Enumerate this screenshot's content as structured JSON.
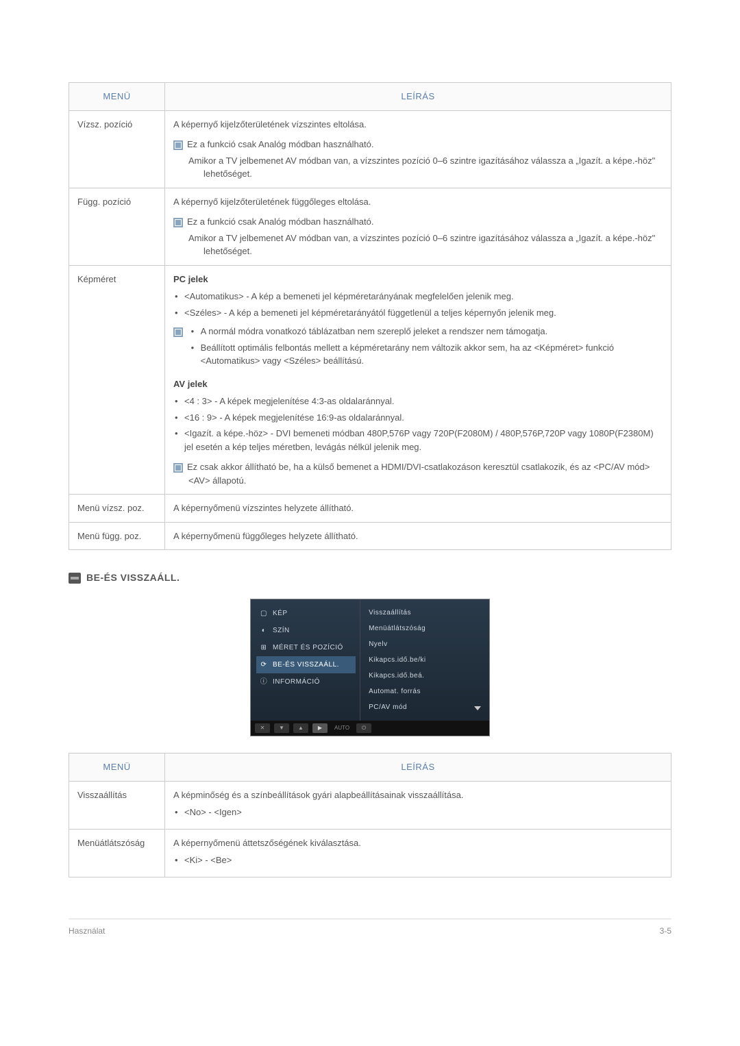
{
  "table1": {
    "header_menu": "MENÜ",
    "header_desc": "LEÍRÁS",
    "rows": {
      "r0": {
        "label": "Vízsz. pozíció",
        "desc": "A képernyő kijelzőterületének vízszintes eltolása.",
        "note1": "Ez a funkció csak Analóg módban használható.",
        "note2": "Amikor a TV jelbemenet AV módban van, a vízszintes pozíció 0–6 szintre igazításához válassza a „Igazít. a képe.-höz\" lehetőséget."
      },
      "r1": {
        "label": "Függ. pozíció",
        "desc": "A képernyő kijelzőterületének függőleges eltolása.",
        "note1": "Ez a funkció csak Analóg módban használható.",
        "note2": "Amikor a TV jelbemenet AV módban van, a vízszintes pozíció 0–6 szintre igazításához válassza a „Igazít. a képe.-höz\" lehetőséget."
      },
      "r2": {
        "label": "Képméret",
        "pc_title": "PC jelek",
        "pc_li1": "<Automatikus> - A kép a bemeneti jel képméretarányának megfelelően jelenik meg.",
        "pc_li2": "<Széles> - A kép a bemeneti jel képméretarányától függetlenül a teljes képernyőn jelenik meg.",
        "pc_note_li1": "A normál módra vonatkozó táblázatban nem szereplő jeleket a rendszer nem támogatja.",
        "pc_note_li2": "Beállított optimális felbontás mellett a képméretarány nem változik akkor sem, ha az <Képméret> funkció <Automatikus> vagy <Széles> beállítású.",
        "av_title": "AV jelek",
        "av_li1": "<4 : 3> - A képek megjelenítése 4:3-as oldalaránnyal.",
        "av_li2": "<16 : 9> - A képek megjelenítése 16:9-as oldalaránnyal.",
        "av_li3": "<Igazít. a képe.-höz> - DVI bemeneti módban 480P,576P vagy 720P(F2080M) / 480P,576P,720P vagy 1080P(F2380M) jel esetén a kép teljes méretben, levágás nélkül jelenik meg.",
        "av_note": "Ez csak akkor állítható be, ha a külső bemenet a HDMI/DVI-csatlakozáson keresztül csatlakozik, és az <PC/AV mód> <AV> állapotú."
      },
      "r3": {
        "label": "Menü vízsz. poz.",
        "desc": "A képernyőmenü vízszintes helyzete állítható."
      },
      "r4": {
        "label": "Menü függ. poz.",
        "desc": "A képernyőmenü függőleges helyzete állítható."
      }
    }
  },
  "section_title": "BE-ÉS VISSZAÁLL.",
  "osd": {
    "left": {
      "i0": "KÉP",
      "i1": "SZÍN",
      "i2": "MÉRET ÉS POZÍCIÓ",
      "i3": "BE-ÉS VISSZAÁLL.",
      "i4": "INFORMÁCIÓ"
    },
    "right": {
      "i0": "Visszaállítás",
      "i1": "Menüátlátszóság",
      "i2": "Nyelv",
      "i3": "Kikapcs.idő.be/ki",
      "i4": "Kikapcs.idő.beá.",
      "i5": "Automat. forrás",
      "i6": "PC/AV mód"
    },
    "bottom_auto": "AUTO"
  },
  "table2": {
    "header_menu": "MENÜ",
    "header_desc": "LEÍRÁS",
    "rows": {
      "r0": {
        "label": "Visszaállítás",
        "desc": "A képminőség és a színbeállítások gyári alapbeállításainak visszaállítása.",
        "li1": "<No> - <Igen>"
      },
      "r1": {
        "label": "Menüátlátszóság",
        "desc": "A képernyőmenü áttetszőségének kiválasztása.",
        "li1": "<Ki> - <Be>"
      }
    }
  },
  "footer": {
    "left": "Használat",
    "right": "3-5"
  }
}
